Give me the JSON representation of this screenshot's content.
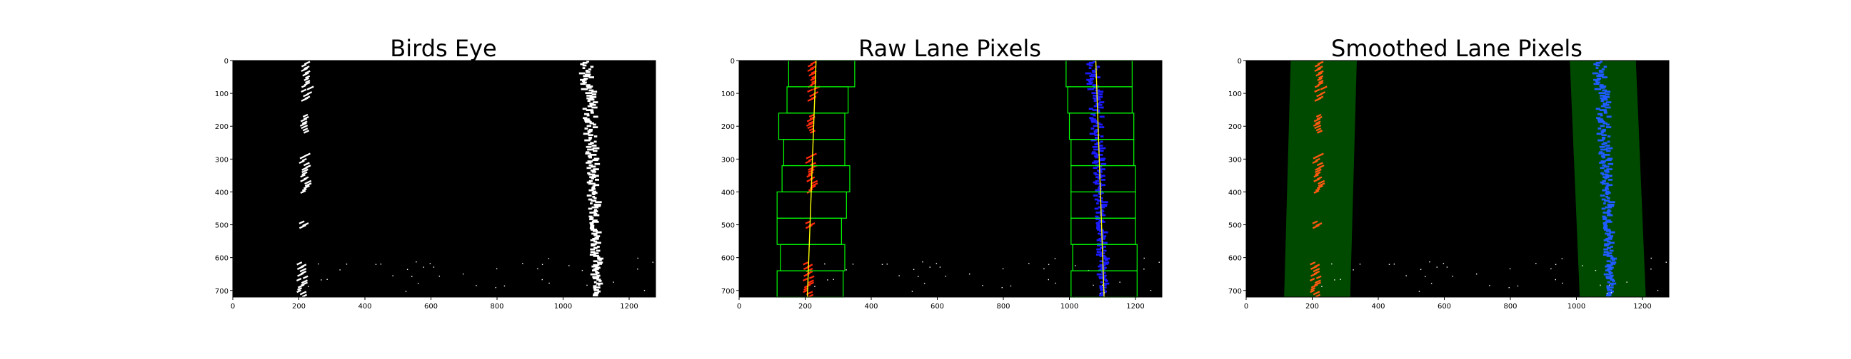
{
  "figure": {
    "panels": [
      {
        "title": "Birds Eye",
        "mode": "binary"
      },
      {
        "title": "Raw Lane Pixels",
        "mode": "raw"
      },
      {
        "title": "Smoothed Lane Pixels",
        "mode": "smoothed"
      }
    ],
    "x_ticks": [
      "0",
      "200",
      "400",
      "600",
      "800",
      "1000",
      "1200"
    ],
    "y_ticks": [
      "0",
      "100",
      "200",
      "300",
      "400",
      "500",
      "600",
      "700"
    ],
    "colors": {
      "lane_pixels": "#ffffff",
      "left_lane": "#ff2a0a",
      "right_lane": "#1a1aff",
      "window": "#00ff00",
      "fit_line": "#ffff00",
      "smoothed_left": "#ff5a10",
      "smoothed_right": "#1f5cff",
      "smoothed_band": "#004a00",
      "background": "#000000"
    }
  }
}
